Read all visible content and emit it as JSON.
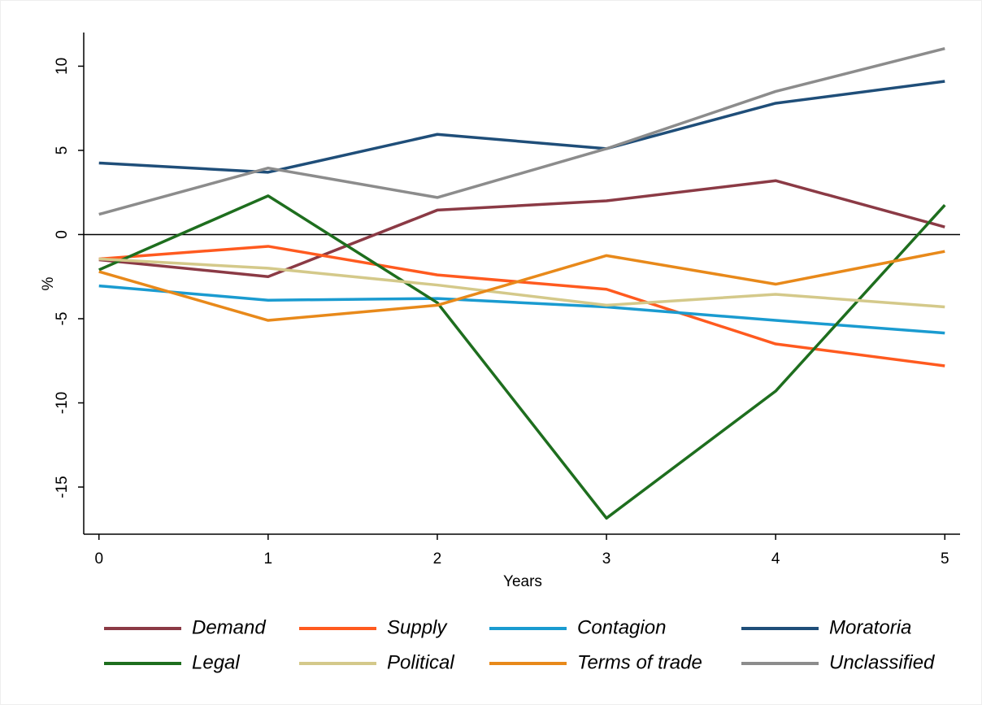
{
  "chart_data": {
    "type": "line",
    "x": [
      0,
      1,
      2,
      3,
      4,
      5
    ],
    "xlim": [
      -0.09,
      5.09
    ],
    "xticks": [
      0,
      1,
      2,
      3,
      4,
      5
    ],
    "ylim": [
      -17.8,
      12
    ],
    "yticks": [
      -15,
      -10,
      -5,
      0,
      5,
      10
    ],
    "xlabel": "Years",
    "ylabel": "%",
    "hline": 0,
    "series": [
      {
        "name": "Demand",
        "color": "#8b3a45",
        "values": [
          -1.5,
          -2.5,
          1.45,
          2.0,
          3.2,
          0.45
        ]
      },
      {
        "name": "Supply",
        "color": "#ff5a1f",
        "values": [
          -1.45,
          -0.7,
          -2.4,
          -3.25,
          -6.5,
          -7.8
        ]
      },
      {
        "name": "Contagion",
        "color": "#1a9bd0",
        "values": [
          -3.05,
          -3.9,
          -3.8,
          -4.3,
          -5.1,
          -5.85
        ]
      },
      {
        "name": "Moratoria",
        "color": "#1f4e79",
        "values": [
          4.25,
          3.7,
          5.95,
          5.1,
          7.8,
          9.1
        ]
      },
      {
        "name": "Legal",
        "color": "#1e6e1e",
        "values": [
          -2.1,
          2.3,
          -4.05,
          -16.85,
          -9.3,
          1.75
        ]
      },
      {
        "name": "Political",
        "color": "#d4c98a",
        "values": [
          -1.45,
          -2.0,
          -3.0,
          -4.2,
          -3.55,
          -4.3
        ]
      },
      {
        "name": "Terms of trade",
        "color": "#e8891a",
        "values": [
          -2.2,
          -5.1,
          -4.2,
          -1.25,
          -2.95,
          -1.0
        ]
      },
      {
        "name": "Unclassified",
        "color": "#8c8c8c",
        "values": [
          1.2,
          3.95,
          2.2,
          5.1,
          8.5,
          11.05
        ]
      }
    ]
  }
}
